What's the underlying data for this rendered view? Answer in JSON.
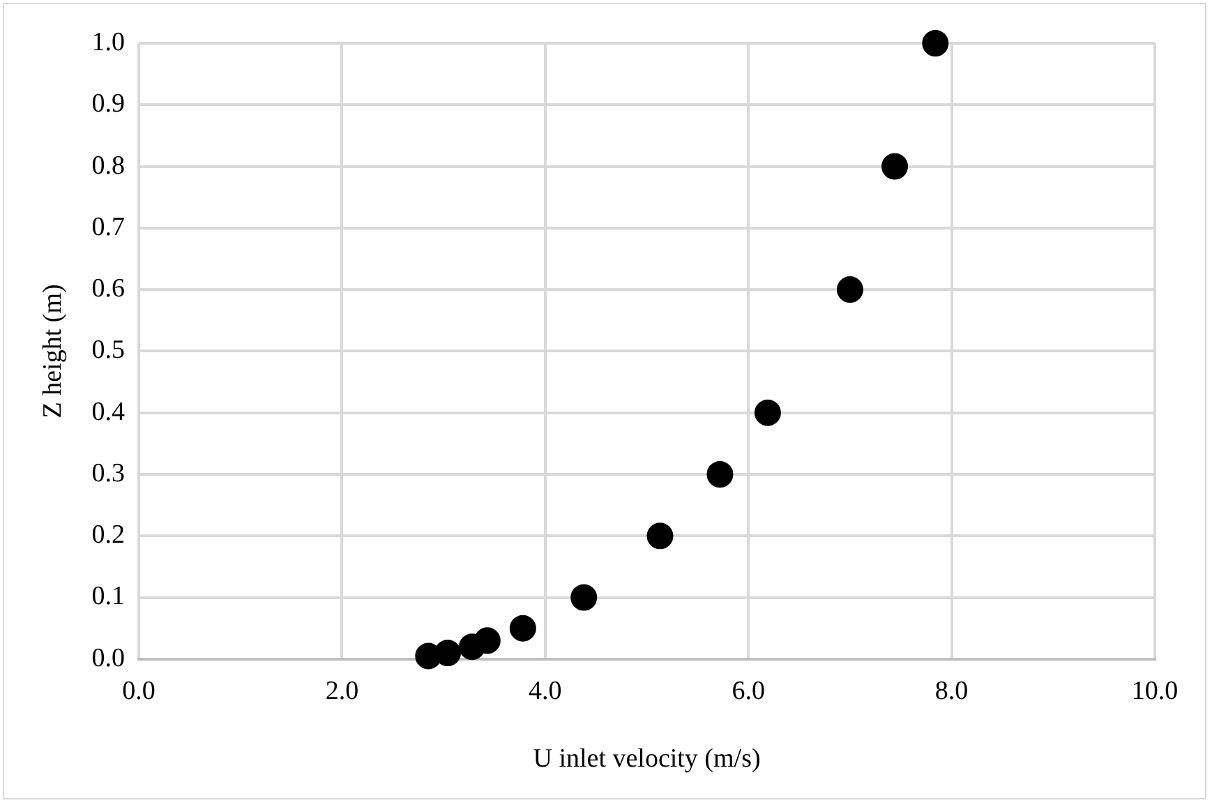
{
  "chart_data": {
    "type": "scatter",
    "xlabel": "U inlet velocity (m/s)",
    "ylabel": "Z height (m)",
    "x": [
      2.85,
      3.04,
      3.28,
      3.43,
      3.78,
      4.38,
      5.13,
      5.72,
      6.19,
      7.0,
      7.44,
      7.84
    ],
    "series": [
      {
        "color": "#000000",
        "values": [
          0.005,
          0.01,
          0.02,
          0.03,
          0.05,
          0.1,
          0.2,
          0.3,
          0.4,
          0.6,
          0.8,
          1.0
        ]
      }
    ],
    "xlim": [
      0,
      10
    ],
    "xticks": [
      {
        "value": 0,
        "label": "0.0"
      },
      {
        "value": 2,
        "label": "2.0"
      },
      {
        "value": 4,
        "label": "4.0"
      },
      {
        "value": 6,
        "label": "6.0"
      },
      {
        "value": 8,
        "label": "8.0"
      },
      {
        "value": 10,
        "label": "10.0"
      }
    ],
    "ylim": [
      0,
      1
    ],
    "yticks": [
      {
        "value": 0,
        "label": "0.0"
      },
      {
        "value": 0.1,
        "label": "0.1"
      },
      {
        "value": 0.2,
        "label": "0.2"
      },
      {
        "value": 0.3,
        "label": "0.3"
      },
      {
        "value": 0.4,
        "label": "0.4"
      },
      {
        "value": 0.5,
        "label": "0.5"
      },
      {
        "value": 0.6,
        "label": "0.6"
      },
      {
        "value": 0.7,
        "label": "0.7"
      },
      {
        "value": 0.8,
        "label": "0.8"
      },
      {
        "value": 0.9,
        "label": "0.9"
      },
      {
        "value": 1,
        "label": "1.0"
      }
    ],
    "grid": true,
    "legend": false,
    "marker": "circle"
  }
}
